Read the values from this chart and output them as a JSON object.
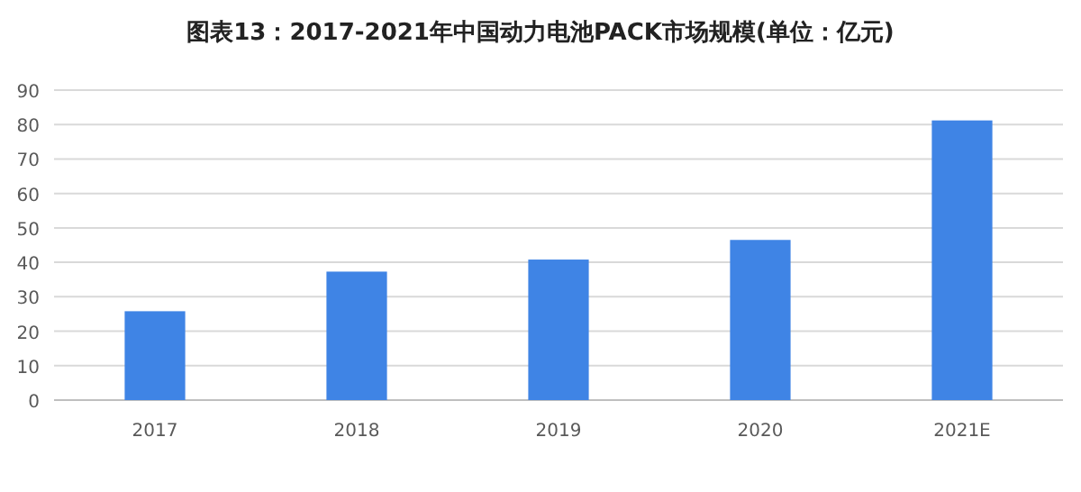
{
  "chart_data": {
    "type": "bar",
    "title": "图表13：2017-2021年中国动力电池PACK市场规模(单位：亿元)",
    "categories": [
      "2017",
      "2018",
      "2019",
      "2020",
      "2021E"
    ],
    "values": [
      25.8,
      37.3,
      40.8,
      46.5,
      81.2
    ],
    "color": "#3f84e5",
    "ylim": [
      0,
      90
    ],
    "yticks": [
      0,
      10,
      20,
      30,
      40,
      50,
      60,
      70,
      80,
      90
    ],
    "grid": "y"
  }
}
